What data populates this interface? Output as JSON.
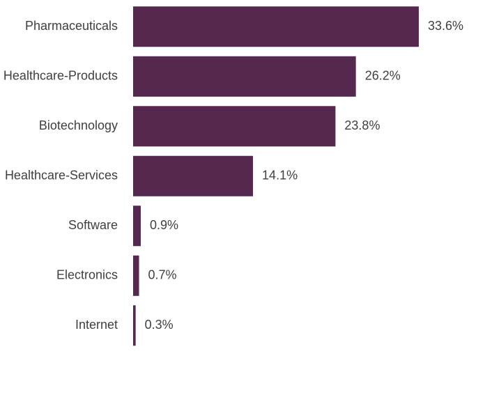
{
  "chart_data": {
    "type": "hbar",
    "categories": [
      "Pharmaceuticals",
      "Healthcare-Products",
      "Biotechnology",
      "Healthcare-Services",
      "Software",
      "Electronics",
      "Internet"
    ],
    "values": [
      33.6,
      26.2,
      23.8,
      14.1,
      0.9,
      0.7,
      0.3
    ],
    "value_labels": [
      "33.6%",
      "26.2%",
      "23.8%",
      "14.1%",
      "0.9%",
      "0.7%",
      "0.3%"
    ],
    "color": "#54284f"
  }
}
